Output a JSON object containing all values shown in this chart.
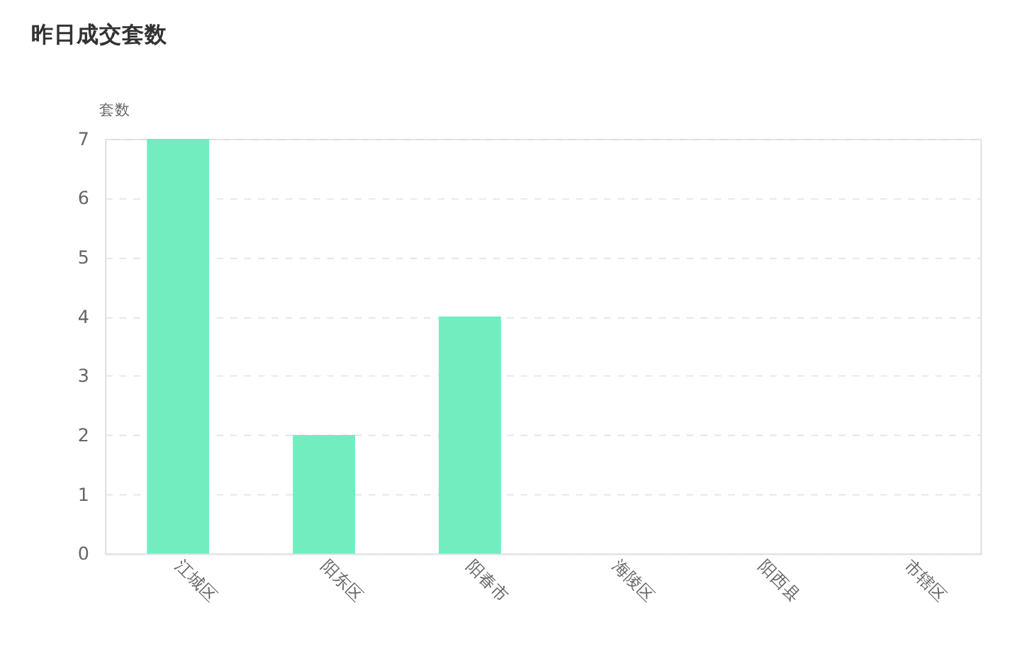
{
  "chart_data": {
    "type": "bar",
    "title": "昨日成交套数",
    "ylabel": "套数",
    "categories": [
      "江城区",
      "阳东区",
      "阳春市",
      "海陵区",
      "阳西县",
      "市辖区"
    ],
    "series": [
      {
        "color": "#72edc0",
        "values": [
          7,
          2,
          4,
          0,
          0,
          0
        ]
      }
    ],
    "ylim": [
      0,
      7
    ],
    "yticks": [
      0,
      1,
      2,
      3,
      4,
      5,
      6,
      7
    ],
    "grid": "y"
  }
}
